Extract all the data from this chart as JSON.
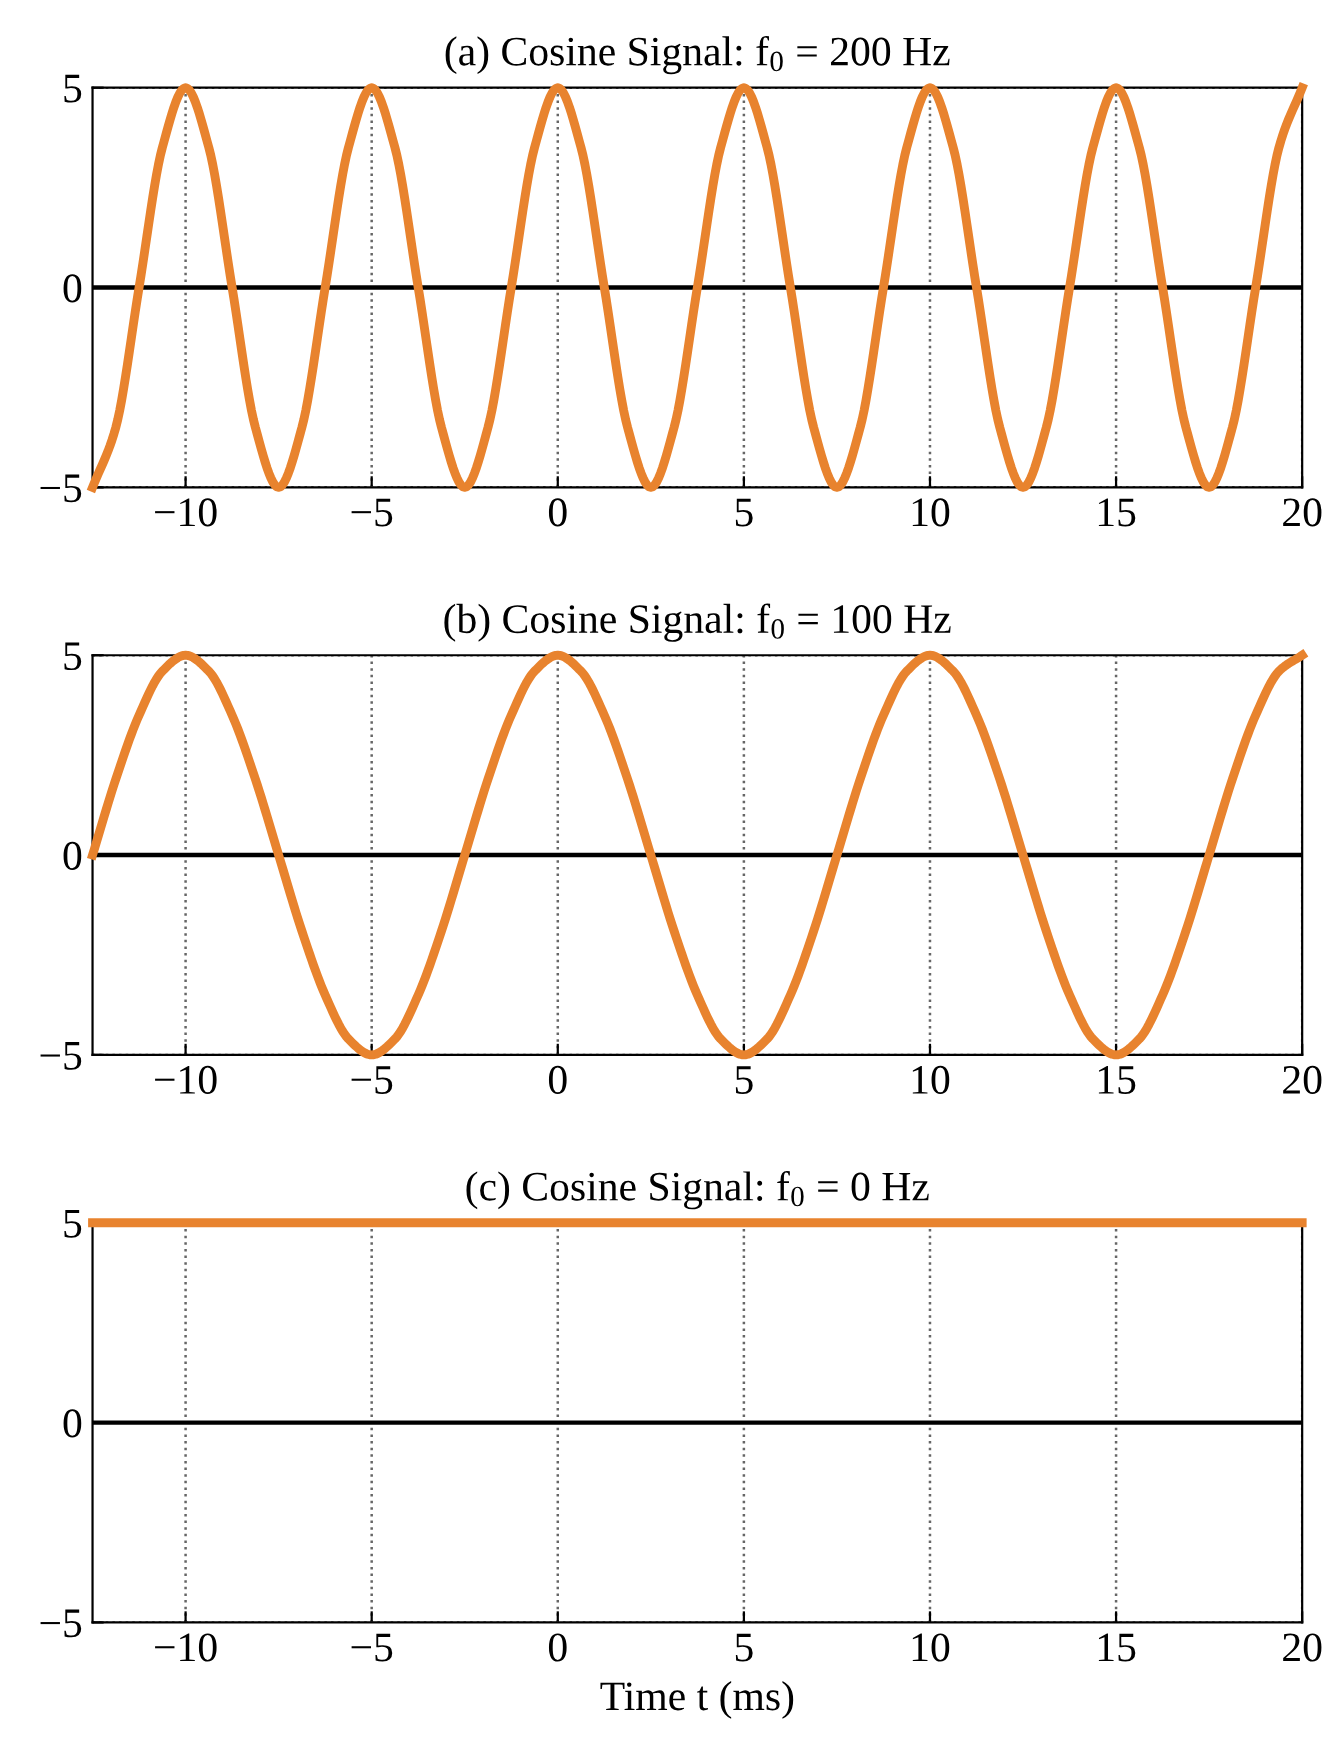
{
  "chart_data": [
    {
      "type": "line",
      "title": "(a) Cosine Signal: f$_{0}$ = 200 Hz",
      "x": [
        -12.5,
        -11.875,
        -11.25,
        -10.625,
        -10,
        -9.375,
        -8.75,
        -8.125,
        -7.5,
        -6.875,
        -6.25,
        -5.625,
        -5,
        -4.375,
        -3.75,
        -3.125,
        -2.5,
        -1.875,
        -1.25,
        -0.625,
        0,
        0.625,
        1.25,
        1.875,
        2.5,
        3.125,
        3.75,
        4.375,
        5,
        5.625,
        6.25,
        6.875,
        7.5,
        8.125,
        8.75,
        9.375,
        10,
        10.625,
        11.25,
        11.875,
        12.5,
        13.125,
        13.75,
        14.375,
        15,
        15.625,
        16.25,
        16.875,
        17.5,
        18.125,
        18.75,
        19.375,
        20
      ],
      "series": [
        {
          "color": "#e8832e",
          "values": [
            -5,
            -3.5,
            0,
            3.5,
            5,
            3.5,
            0,
            -3.5,
            -5,
            -3.5,
            0,
            3.5,
            5,
            3.5,
            0,
            -3.5,
            -5,
            -3.5,
            0,
            3.5,
            5,
            3.5,
            0,
            -3.5,
            -5,
            -3.5,
            0,
            3.5,
            5,
            3.5,
            0,
            -3.5,
            -5,
            -3.5,
            0,
            3.5,
            5,
            3.5,
            0,
            -3.5,
            -5,
            -3.5,
            0,
            3.5,
            5,
            3.5,
            0,
            -3.5,
            -5,
            -3.5,
            0,
            3.5,
            5
          ]
        }
      ],
      "xlim": [
        -12.5,
        20
      ],
      "xticks": [
        -10,
        -5,
        0,
        5,
        10,
        15,
        20
      ],
      "ylim": [
        -5,
        5
      ],
      "yticks": [
        -5,
        0,
        5
      ],
      "grid": true,
      "line_style": "solid",
      "marker": "none",
      "ref_lines": [
        {
          "axis": "y",
          "value": 0,
          "color": "#000000",
          "line_style": "solid"
        }
      ]
    },
    {
      "type": "line",
      "title": "(b) Cosine Signal: f$_{0}$ = 100 Hz",
      "x": [
        -12.5,
        -11.875,
        -11.25,
        -10.625,
        -10,
        -9.375,
        -8.75,
        -8.125,
        -7.5,
        -6.875,
        -6.25,
        -5.625,
        -5,
        -4.375,
        -3.75,
        -3.125,
        -2.5,
        -1.875,
        -1.25,
        -0.625,
        0,
        0.625,
        1.25,
        1.875,
        2.5,
        3.125,
        3.75,
        4.375,
        5,
        5.625,
        6.25,
        6.875,
        7.5,
        8.125,
        8.75,
        9.375,
        10,
        10.625,
        11.25,
        11.875,
        12.5,
        13.125,
        13.75,
        14.375,
        15,
        15.625,
        16.25,
        16.875,
        17.5,
        18.125,
        18.75,
        19.375,
        20
      ],
      "series": [
        {
          "color": "#e8832e",
          "values": [
            0,
            1.9,
            3.5,
            4.6,
            5,
            4.6,
            3.5,
            1.9,
            0,
            -1.9,
            -3.5,
            -4.6,
            -5,
            -4.6,
            -3.5,
            -1.9,
            0,
            1.9,
            3.5,
            4.6,
            5,
            4.6,
            3.5,
            1.9,
            0,
            -1.9,
            -3.5,
            -4.6,
            -5,
            -4.6,
            -3.5,
            -1.9,
            0,
            1.9,
            3.5,
            4.6,
            5,
            4.6,
            3.5,
            1.9,
            0,
            -1.9,
            -3.5,
            -4.6,
            -5,
            -4.6,
            -3.5,
            -1.9,
            0,
            1.9,
            3.5,
            4.6,
            5
          ]
        }
      ],
      "xlim": [
        -12.5,
        20
      ],
      "xticks": [
        -10,
        -5,
        0,
        5,
        10,
        15,
        20
      ],
      "ylim": [
        -5,
        5
      ],
      "yticks": [
        -5,
        0,
        5
      ],
      "grid": true,
      "line_style": "solid",
      "marker": "none",
      "ref_lines": [
        {
          "axis": "y",
          "value": 0,
          "color": "#000000",
          "line_style": "solid"
        }
      ]
    },
    {
      "type": "line",
      "title": "(c) Cosine Signal: f$_{0}$ = 0 Hz",
      "xlabel": "Time t (ms)",
      "x": [
        -12.5,
        20
      ],
      "series": [
        {
          "color": "#e8832e",
          "values": [
            5,
            5
          ]
        }
      ],
      "xlim": [
        -12.5,
        20
      ],
      "xticks": [
        -10,
        -5,
        0,
        5,
        10,
        15,
        20
      ],
      "ylim": [
        -5,
        5
      ],
      "yticks": [
        -5,
        0,
        5
      ],
      "grid": true,
      "line_style": "solid",
      "marker": "none",
      "ref_lines": [
        {
          "axis": "y",
          "value": 0,
          "color": "#000000",
          "line_style": "solid"
        }
      ]
    }
  ]
}
